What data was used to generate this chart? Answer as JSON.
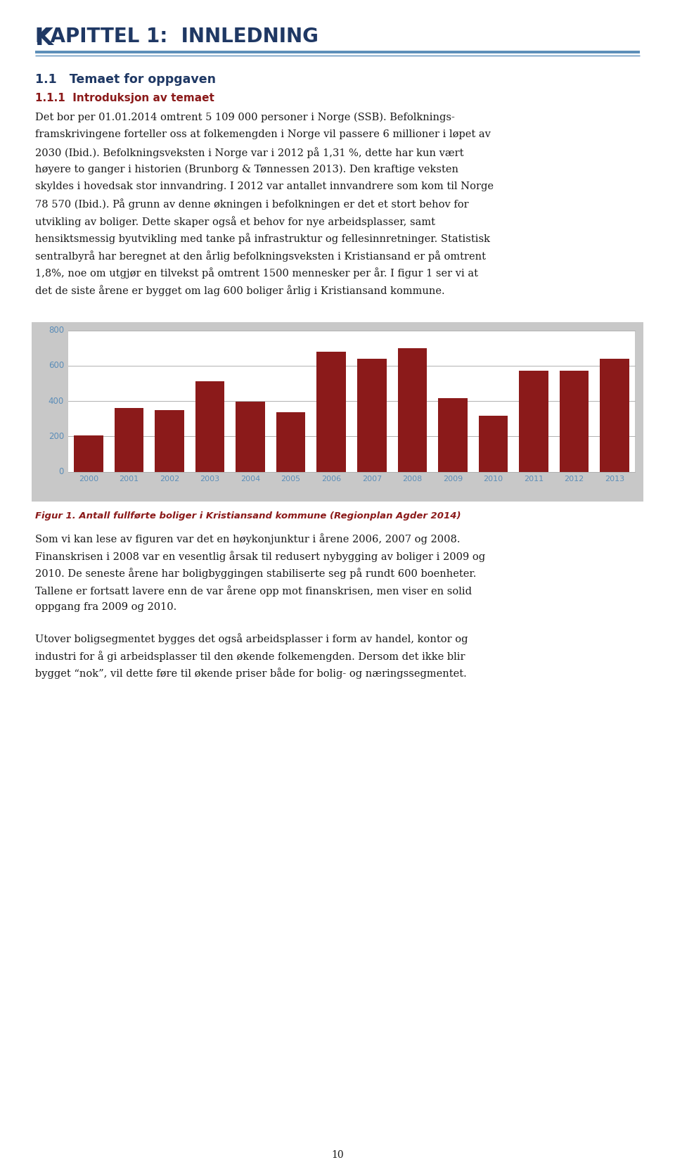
{
  "page_title_upper": "KAPITTEL 1:  INNLEDNING",
  "page_title_display": "Kapittel 1:  Innledning",
  "section_title": "1.1   Temaet for oppgaven",
  "subsection_title": "1.1.1  Introduksjon av temaet",
  "paragraph1_lines": [
    "Det bor per 01.01.2014 omtrent 5 109 000 personer i Norge (SSB). Befolknings-",
    "framskrivingene forteller oss at folkemengden i Norge vil passere 6 millioner i løpet av",
    "2030 (Ibid.). Befolkningsveksten i Norge var i 2012 på 1,31 %, dette har kun vært",
    "høyere to ganger i historien (Brunborg & Tønnessen 2013). Den kraftige veksten",
    "skyldes i hovedsak stor innvandring. I 2012 var antallet innvandrere som kom til Norge",
    "78 570 (Ibid.). På grunn av denne økningen i befolkningen er det et stort behov for",
    "utvikling av boliger. Dette skaper også et behov for nye arbeidsplasser, samt",
    "hensiktsmessig byutvikling med tanke på infrastruktur og fellesinnretninger. Statistisk",
    "sentralbyrå har beregnet at den årlig befolkningsveksten i Kristiansand er på omtrent",
    "1,8%, noe om utgjør en tilvekst på omtrent 1500 mennesker per år. I figur 1 ser vi at",
    "det de siste årene er bygget om lag 600 boliger årlig i Kristiansand kommune."
  ],
  "chart_years": [
    "2000",
    "2001",
    "2002",
    "2003",
    "2004",
    "2005",
    "2006",
    "2007",
    "2008",
    "2009",
    "2010",
    "2011",
    "2012",
    "2013"
  ],
  "chart_values": [
    205,
    360,
    350,
    510,
    395,
    335,
    680,
    640,
    700,
    415,
    315,
    570,
    570,
    640
  ],
  "chart_bar_color": "#8B1A1A",
  "chart_bg_color": "#C8C8C8",
  "chart_plot_bg": "#FFFFFF",
  "chart_grid_color": "#B0B0B0",
  "chart_tick_color": "#5B8DB8",
  "chart_ylim": [
    0,
    800
  ],
  "chart_yticks": [
    0,
    200,
    400,
    600,
    800
  ],
  "figure_caption": "Figur 1. Antall fullførte boliger i Kristiansand kommune (Regionplan Agder 2014)",
  "paragraph2_lines": [
    "Som vi kan lese av figuren var det en høykonjunktur i årene 2006, 2007 og 2008.",
    "Finanskrisen i 2008 var en vesentlig årsak til redusert nybygging av boliger i 2009 og",
    "2010. De seneste årene har boligbyggingen stabiliserte seg på rundt 600 boenheter.",
    "Tallene er fortsatt lavere enn de var årene opp mot finanskrisen, men viser en solid",
    "oppgang fra 2009 og 2010."
  ],
  "paragraph3_lines": [
    "Utover boligsegmentet bygges det også arbeidsplasser i form av handel, kontor og",
    "industri for å gi arbeidsplasser til den økende folkemengden. Dersom det ikke blir",
    "bygget “nok”, vil dette føre til økende priser både for bolig- og næringssegmentet."
  ],
  "page_number": "10",
  "title_color": "#1F3864",
  "section_color": "#1F3864",
  "subsection_color": "#8B1A1A",
  "header_line_color": "#5B8DB8",
  "body_text_color": "#1a1a1a",
  "caption_color": "#8B1A1A",
  "bg_color": "#FFFFFF"
}
